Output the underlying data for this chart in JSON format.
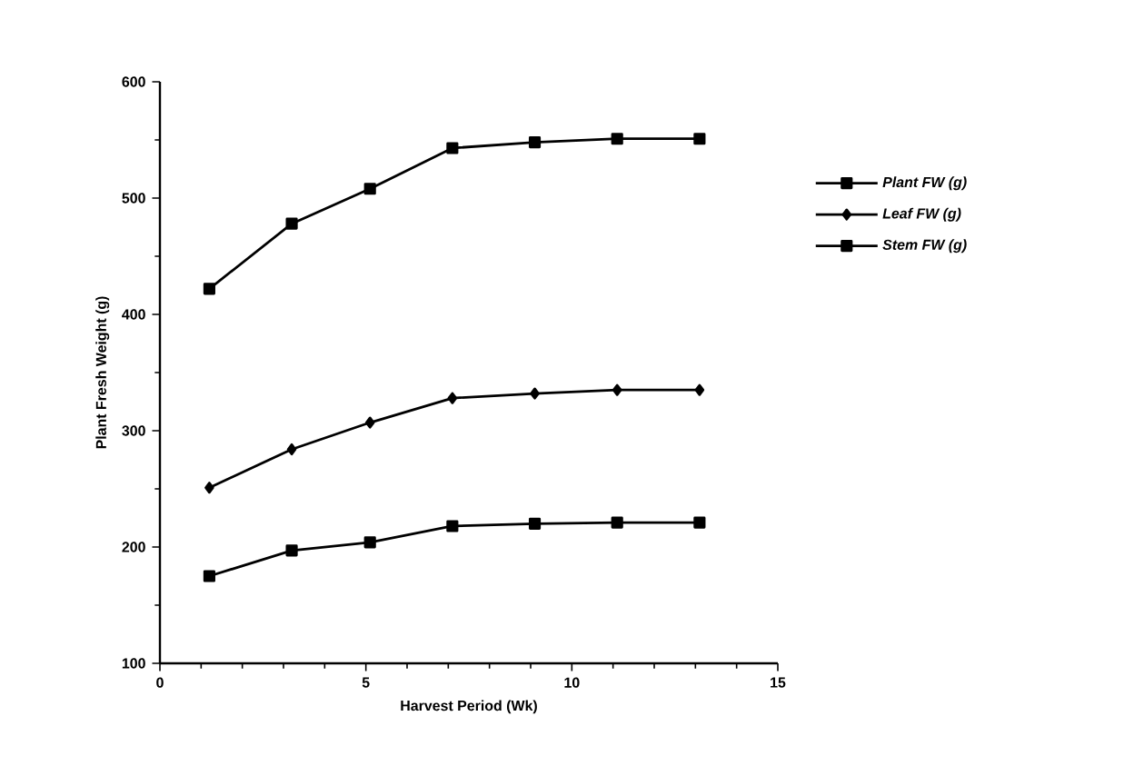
{
  "chart_data": {
    "type": "line",
    "xlabel": "Harvest  Period  (Wk)",
    "ylabel": "Plant  Fresh  Weight  (g)",
    "x": [
      1.2,
      3.2,
      5.1,
      7.1,
      9.1,
      11.1,
      13.1
    ],
    "series": [
      {
        "name": "Plant FW (g)",
        "color": "#000000",
        "marker": "square",
        "values": [
          422,
          478,
          508,
          543,
          548,
          551,
          551
        ]
      },
      {
        "name": "Leaf FW (g)",
        "color": "#000000",
        "marker": "diamond",
        "values": [
          251,
          284,
          307,
          328,
          332,
          335,
          335
        ]
      },
      {
        "name": "Stem FW (g)",
        "color": "#000000",
        "marker": "square",
        "values": [
          175,
          197,
          204,
          218,
          220,
          221,
          221
        ]
      }
    ],
    "xlim": [
      0,
      15
    ],
    "xticks": [
      0,
      5,
      10,
      15
    ],
    "ylim": [
      100,
      600
    ],
    "yticks": [
      100,
      200,
      300,
      400,
      500,
      600
    ],
    "grid": false,
    "legend": "right",
    "line_style": "solid"
  }
}
